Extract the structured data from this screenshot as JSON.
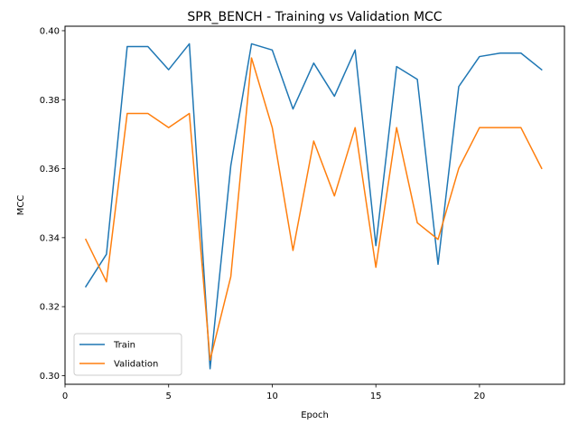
{
  "chart_data": {
    "type": "line",
    "title": "SPR_BENCH - Training vs Validation MCC",
    "xlabel": "Epoch",
    "ylabel": "MCC",
    "xlim": [
      0.0,
      24.1
    ],
    "ylim": [
      0.2975,
      0.4013
    ],
    "xticks": [
      0,
      5,
      10,
      15,
      20
    ],
    "xtick_labels": [
      "0",
      "5",
      "10",
      "15",
      "20"
    ],
    "yticks": [
      0.3,
      0.32,
      0.34,
      0.36,
      0.38,
      0.4
    ],
    "ytick_labels": [
      "0.30",
      "0.32",
      "0.34",
      "0.36",
      "0.38",
      "0.40"
    ],
    "grid": false,
    "legend_position": "lower-left",
    "x": [
      1,
      2,
      3,
      4,
      5,
      6,
      7,
      8,
      9,
      10,
      11,
      12,
      13,
      14,
      15,
      16,
      17,
      18,
      19,
      20,
      21,
      22,
      23
    ],
    "series": [
      {
        "name": "Train",
        "color": "#1f77b4",
        "values": [
          0.3258,
          0.3352,
          0.3954,
          0.3954,
          0.3887,
          0.3962,
          0.302,
          0.3609,
          0.3962,
          0.3944,
          0.3773,
          0.3906,
          0.381,
          0.3944,
          0.3377,
          0.3896,
          0.3859,
          0.3323,
          0.3838,
          0.3925,
          0.3935,
          0.3935,
          0.3887
        ]
      },
      {
        "name": "Validation",
        "color": "#ff7f0e",
        "values": [
          0.3395,
          0.3272,
          0.376,
          0.376,
          0.3719,
          0.376,
          0.3045,
          0.3287,
          0.3921,
          0.3719,
          0.3363,
          0.368,
          0.3521,
          0.3719,
          0.3314,
          0.3719,
          0.3443,
          0.3395,
          0.3601,
          0.3719,
          0.3719,
          0.3719,
          0.3601
        ]
      }
    ]
  }
}
